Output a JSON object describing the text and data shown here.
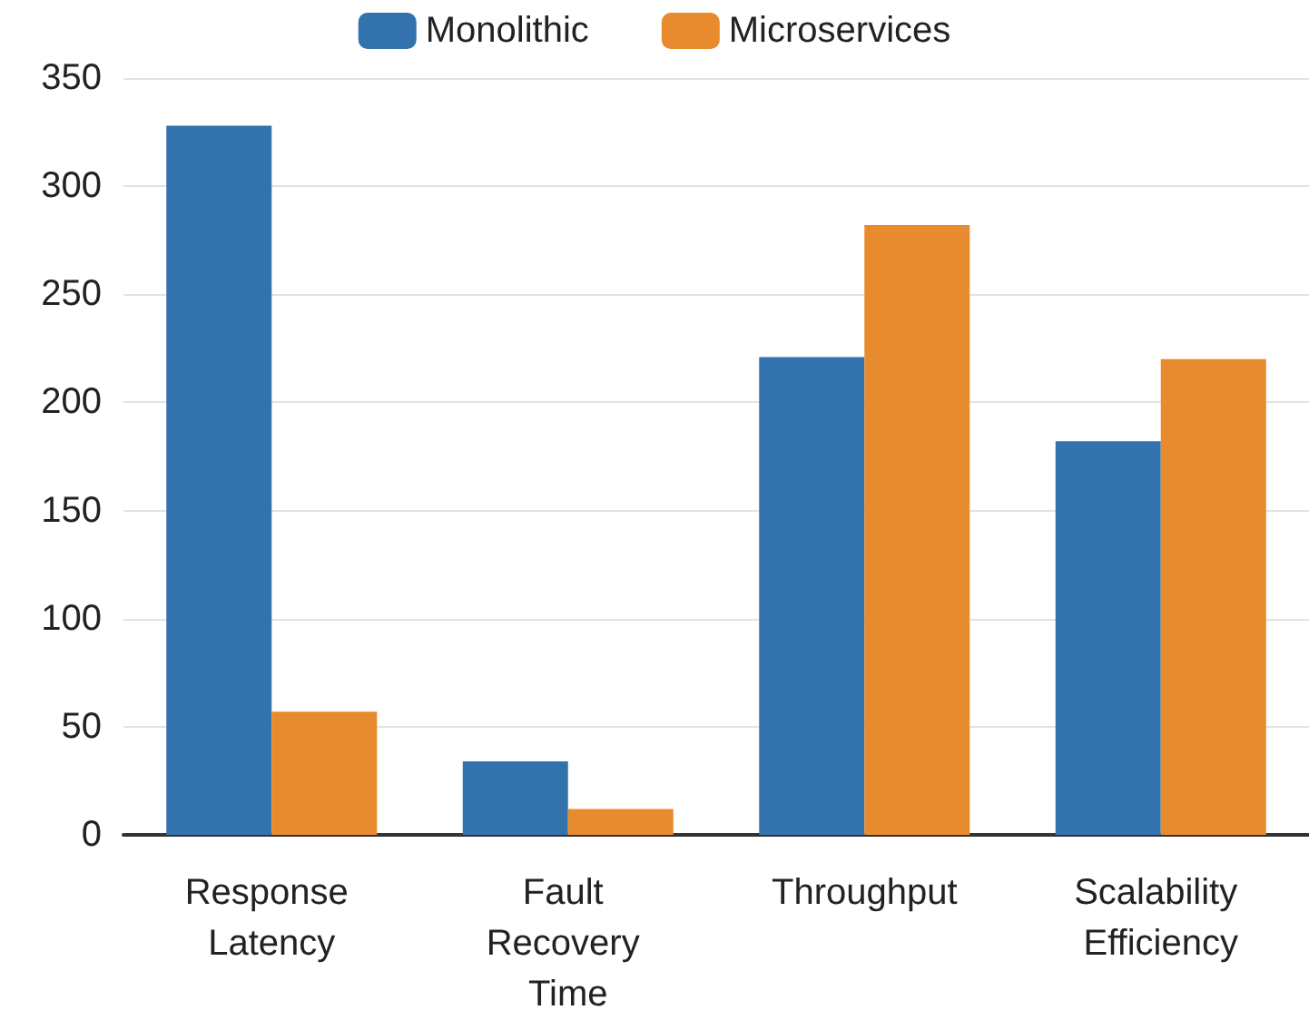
{
  "chart_data": {
    "type": "bar",
    "categories": [
      "Response Latency",
      "Fault Recovery Time",
      "Throughput",
      "Scalability Efficiency"
    ],
    "series": [
      {
        "name": "Monolithic",
        "color": "#3373ad",
        "values": [
          328,
          34,
          221,
          182
        ]
      },
      {
        "name": "Microservices",
        "color": "#e88a2e",
        "values": [
          57,
          12,
          282,
          220
        ]
      }
    ],
    "ylim": [
      0,
      350
    ],
    "yticks": [
      0,
      50,
      100,
      150,
      200,
      250,
      300,
      350
    ],
    "grid": "y",
    "legend": "top"
  }
}
